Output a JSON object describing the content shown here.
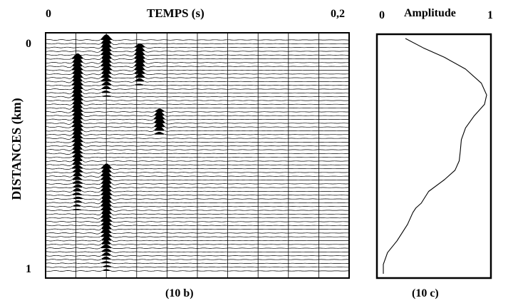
{
  "panel_b": {
    "x_label": "TEMPS  (s)",
    "x_tick_start": "0",
    "x_tick_end": "0,2",
    "y_label": "DISTANCES  (km)",
    "y_tick_start": "0",
    "y_tick_end": "1",
    "caption": "(10 b)"
  },
  "panel_c": {
    "x_label": "Amplitude",
    "x_tick_start": "0",
    "x_tick_end": "1",
    "caption": "(10 c)"
  },
  "colors": {
    "ink": "#000000",
    "background": "#ffffff"
  },
  "chart_data": [
    {
      "type": "line",
      "description_kind": "seismic wiggle section",
      "xlim": [
        0,
        0.2
      ],
      "ylim": [
        0,
        1
      ],
      "trace_count": 62,
      "time_gridlines": [
        0.02,
        0.04,
        0.06,
        0.08,
        0.1,
        0.12,
        0.14,
        0.16,
        0.18
      ],
      "events": [
        {
          "time": 0.021,
          "distance_range": [
            0.08,
            0.75
          ],
          "peak_distance": 0.25
        },
        {
          "time": 0.04,
          "distance_range": [
            0.0,
            0.25
          ],
          "peak_distance": 0.06
        },
        {
          "time": 0.04,
          "distance_range": [
            0.55,
            1.0
          ],
          "peak_distance": 0.7
        },
        {
          "time": 0.062,
          "distance_range": [
            0.02,
            0.2
          ],
          "peak_distance": 0.1
        },
        {
          "time": 0.075,
          "distance_range": [
            0.3,
            0.42
          ],
          "peak_distance": 0.36
        }
      ]
    },
    {
      "type": "line",
      "xlim": [
        0,
        1
      ],
      "ylim": [
        0,
        1
      ],
      "x": [
        0.23,
        0.4,
        0.6,
        0.8,
        0.95,
        1.0,
        0.98,
        0.88,
        0.8,
        0.76,
        0.75,
        0.74,
        0.7,
        0.6,
        0.45,
        0.38,
        0.33,
        0.3,
        0.25,
        0.15,
        0.06,
        0.02,
        0.02
      ],
      "y": [
        0.0,
        0.04,
        0.08,
        0.13,
        0.19,
        0.24,
        0.28,
        0.33,
        0.38,
        0.43,
        0.48,
        0.52,
        0.56,
        0.6,
        0.65,
        0.7,
        0.72,
        0.74,
        0.79,
        0.86,
        0.91,
        0.96,
        1.0
      ]
    }
  ]
}
